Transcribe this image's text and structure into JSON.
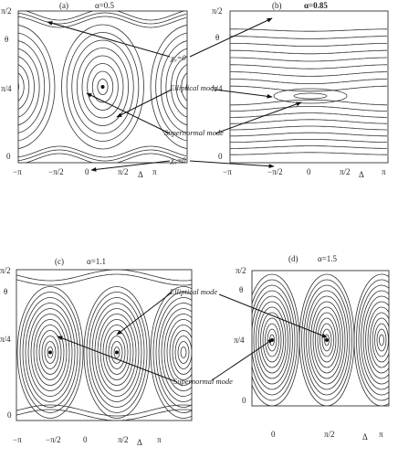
{
  "panels": [
    {
      "label": "(a)",
      "alpha": "α=0.5",
      "yticks": [
        "π/2",
        "θ",
        "π/4",
        "0"
      ],
      "xticks": [
        "−π",
        "−π/2",
        "0",
        "π/2",
        "Δ",
        "π"
      ]
    },
    {
      "label": "(b)",
      "alpha": "α=0.85",
      "yticks": [
        "π/2",
        "θ",
        "π/4",
        "0"
      ],
      "xticks": [
        "−π",
        "−π/2",
        "0",
        "π/2",
        "Δ",
        "π"
      ]
    },
    {
      "label": "(c)",
      "alpha": "α=1.1",
      "yticks": [
        "π/2",
        "θ",
        "π/4",
        "0"
      ],
      "xticks": [
        "−π",
        "−π/2",
        "0",
        "π/2",
        "Δ",
        "π"
      ]
    },
    {
      "label": "(d)",
      "alpha": "α=1.5",
      "yticks": [
        "π/2",
        "θ",
        "π/4",
        "0"
      ],
      "xticks": [
        "0",
        "π/2",
        "Δ",
        "π"
      ]
    }
  ],
  "annotations": {
    "chi_top": "χ₀=0",
    "elliptical_top": "Elliptical mode",
    "supernormal_top": "Supernormal mode",
    "chi_bottom": "χ₀=0",
    "elliptical_bottom": "Elliptical mode",
    "supernormal_bottom": "Supernormal mode"
  }
}
